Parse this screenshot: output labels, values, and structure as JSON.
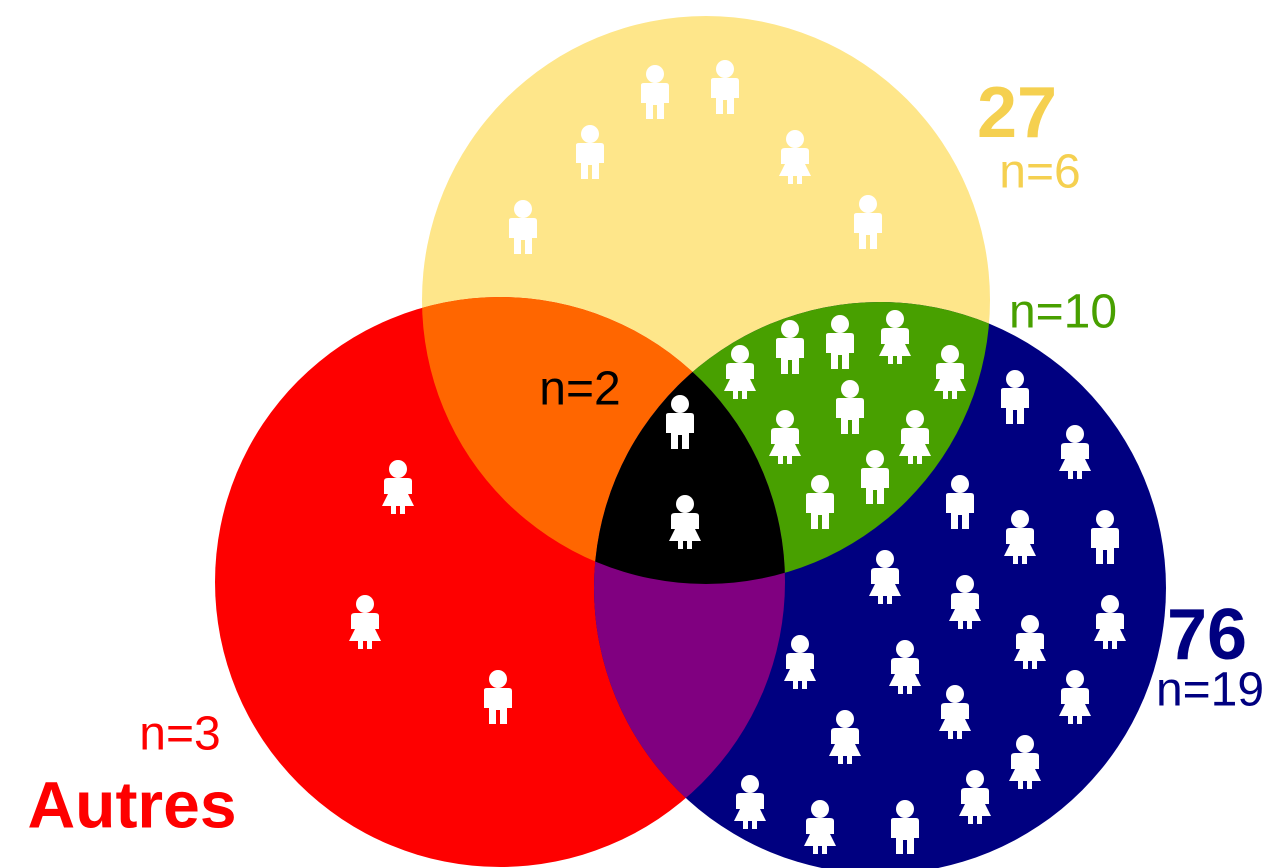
{
  "labels": {
    "top_value": "27",
    "top_n": "n=6",
    "overlap_top_right_n": "n=10",
    "center_n": "n=2",
    "right_value": "76",
    "right_n": "n=19",
    "left_n": "n=3",
    "left_label": "Autres"
  }
}
